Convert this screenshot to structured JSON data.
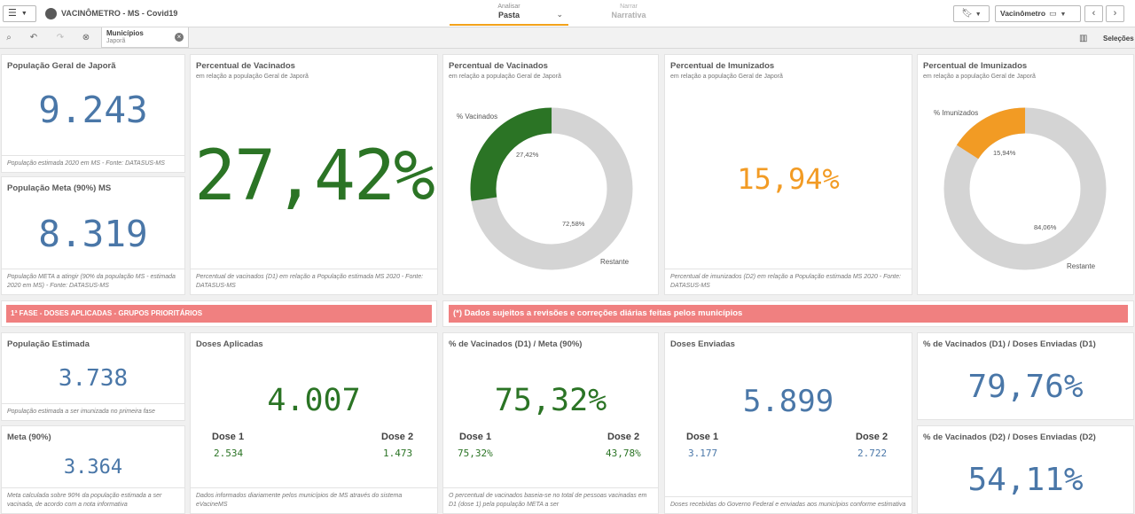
{
  "colors": {
    "green": "#2b7425",
    "orange": "#f29b24",
    "blue": "#4a77a8",
    "gray": "#d4d4d4",
    "banner": "#f08080",
    "accent": "#f3a21b"
  },
  "topbar": {
    "menu_icon": "hamburger-icon",
    "app_title": "VACINÔMETRO - MS - Covid19",
    "tab_analyze_top": "Analisar",
    "tab_analyze_bottom": "Pasta",
    "tab_narrate_top": "Narrar",
    "tab_narrate_bottom": "Narrativa",
    "sheet_label": "Vacinômetro"
  },
  "selbar": {
    "filter_field": "Municípios",
    "filter_value": "Japorã",
    "selections_label": "Seleções"
  },
  "kpi": {
    "pop_geral": {
      "title": "População Geral de Japorã",
      "value": "9.243",
      "footer": "População estimada 2020 em MS - Fonte: DATASUS-MS"
    },
    "pop_meta": {
      "title": "População Meta (90%) MS",
      "value": "8.319",
      "footer": "População META a atingir (90% da população MS - estimada 2020 em MS) - Fonte: DATASUS-MS"
    },
    "pct_vac_big": {
      "title": "Percentual de Vacinados",
      "subtitle": "em relação a população Geral de Japorã",
      "value": "27,42%",
      "footer": "Percentual de vacinados (D1) em relação a População estimada MS 2020 - Fonte: DATASUS-MS"
    },
    "pct_vac_donut": {
      "title": "Percentual de Vacinados",
      "subtitle": "em relação a população Geral de Japorã",
      "label_a": "% Vacinados",
      "label_b": "Restante",
      "pct_a": "27,42%",
      "pct_b": "72,58%",
      "fraction": 0.2742
    },
    "pct_imu_big": {
      "title": "Percentual de Imunizados",
      "subtitle": "em relação a população Geral de Japorã",
      "value": "15,94%",
      "footer": "Percentual de imunizados (D2) em relação a População estimada MS 2020 - Fonte: DATASUS-MS"
    },
    "pct_imu_donut": {
      "title": "Percentual de Imunizados",
      "subtitle": "em relação a população Geral de Japorã",
      "label_a": "% Imunizados",
      "label_b": "Restante",
      "pct_a": "15,94%",
      "pct_b": "84,06%",
      "fraction": 0.1594
    }
  },
  "banners": {
    "left": "1ª FASE - DOSES APLICADAS - GRUPOS PRIORITÁRIOS",
    "right": "(*) Dados sujeitos a revisões e correções diárias feitas pelos municípios"
  },
  "bottom": {
    "pop_est": {
      "title": "População Estimada",
      "value": "3.738",
      "footer": "População estimada a ser imunizada no primeira fase"
    },
    "meta": {
      "title": "Meta (90%)",
      "value": "3.364",
      "footer": "Meta calculada sobre 90% da população estimada a ser vacinada, de acordo com a nota informativa"
    },
    "doses_aplicadas": {
      "title": "Doses Aplicadas",
      "value": "4.007",
      "dose1_label": "Dose 1",
      "dose1": "2.534",
      "dose2_label": "Dose 2",
      "dose2": "1.473",
      "footer": "Dados informados diariamente pelos municípios de MS através do sistema eVacineMS"
    },
    "vac_meta": {
      "title": "% de Vacinados (D1) / Meta (90%)",
      "value": "75,32%",
      "dose1_label": "Dose 1",
      "dose1": "75,32%",
      "dose2_label": "Dose 2",
      "dose2": "43,78%",
      "footer": "O percentual de vacinados baseia-se no total de pessoas vacinadas em D1 (dose 1) pela população META a ser"
    },
    "doses_enviadas": {
      "title": "Doses Enviadas",
      "value": "5.899",
      "dose1_label": "Dose 1",
      "dose1": "3.177",
      "dose2_label": "Dose 2",
      "dose2": "2.722",
      "footer": "Doses recebidas do Governo Federal e enviadas aos municípios conforme estimativa"
    },
    "vac_d1_env": {
      "title": "% de Vacinados (D1) / Doses Enviadas (D1)",
      "value": "79,76%"
    },
    "vac_d2_env": {
      "title": "% de Vacinados (D2) / Doses Enviadas (D2)",
      "value": "54,11%"
    }
  }
}
